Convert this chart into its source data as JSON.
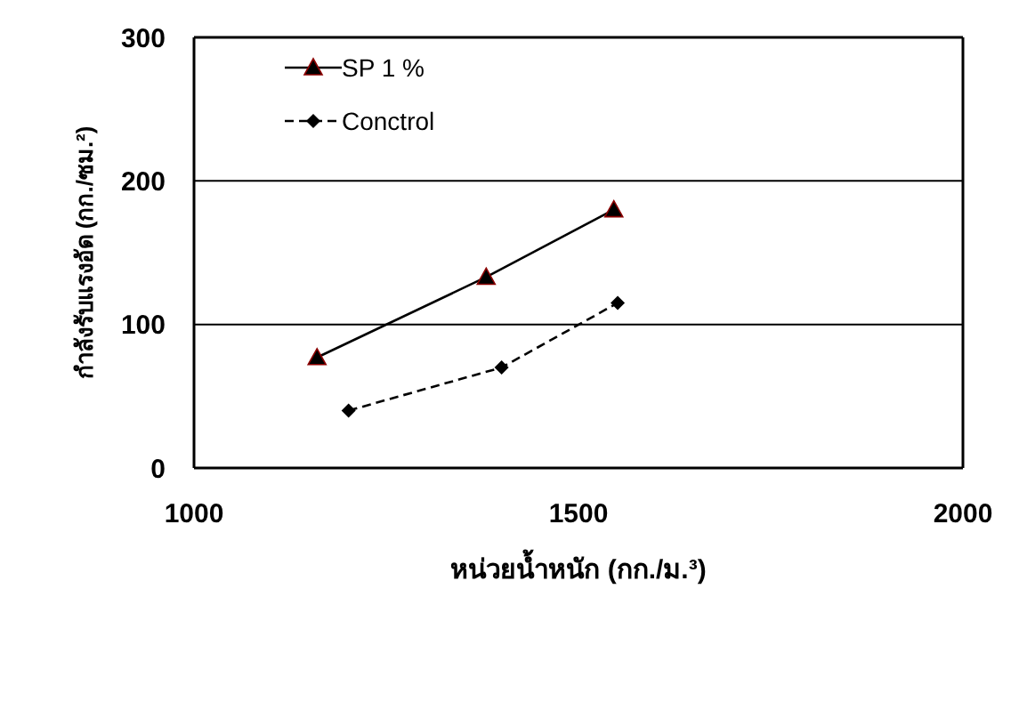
{
  "chart_data": {
    "type": "line",
    "xlabel": "หน่วยน้ำหนัก (กก./ม.³)",
    "ylabel": "กำลังรับแรงอัด (กก./ซม.²)",
    "xlim": [
      1000,
      2000
    ],
    "xticks": [
      1000,
      1500,
      2000
    ],
    "ylim": [
      0,
      300
    ],
    "yticks": [
      0,
      100,
      200,
      300
    ],
    "grid": "y",
    "legend": "top left",
    "series": [
      {
        "name": "SP 1 %",
        "color": "#000000",
        "marker": "triangle",
        "line_style": "solid",
        "x": [
          1160,
          1380,
          1546
        ],
        "values": [
          77,
          133,
          180
        ]
      },
      {
        "name": "Conctrol",
        "color": "#000000",
        "marker": "diamond",
        "line_style": "dashed",
        "x": [
          1201,
          1400,
          1551
        ],
        "values": [
          40,
          70,
          115
        ]
      }
    ]
  }
}
